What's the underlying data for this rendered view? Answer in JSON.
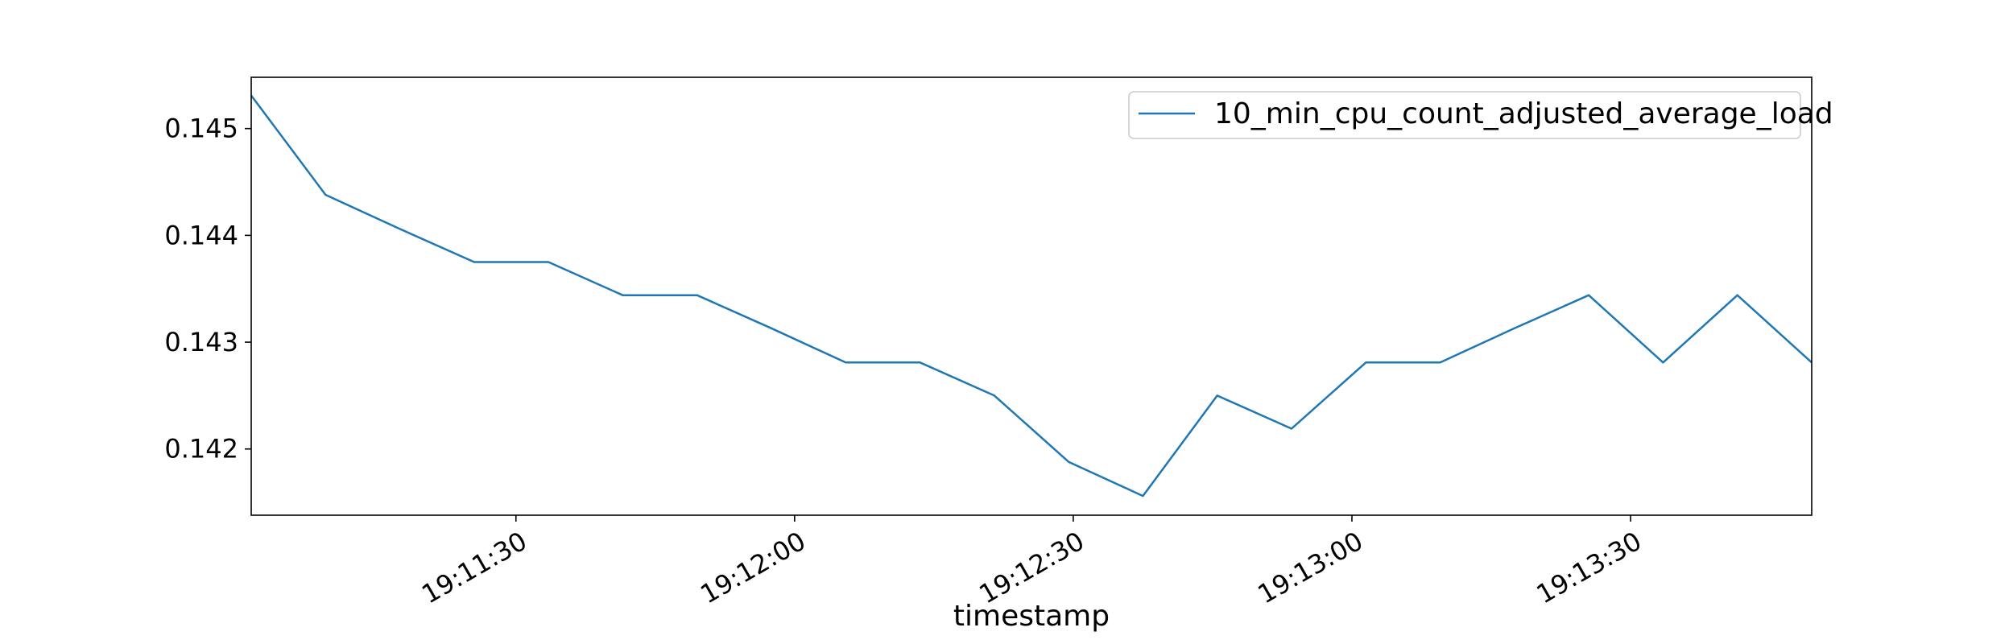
{
  "chart_data": {
    "type": "line",
    "title": "",
    "xlabel": "timestamp",
    "ylabel": "",
    "x_tick_labels": [
      "19:11:30",
      "19:12:00",
      "19:12:30",
      "19:13:00",
      "19:13:30"
    ],
    "x_tick_values": [
      "19:11:30",
      "19:12:00",
      "19:12:30",
      "19:13:00",
      "19:13:30"
    ],
    "y_tick_labels": [
      "0.142",
      "0.143",
      "0.144",
      "0.145"
    ],
    "y_tick_values": [
      0.142,
      0.143,
      0.144,
      0.145
    ],
    "xlim": [
      "19:11:01.5",
      "19:13:49.5"
    ],
    "ylim": [
      0.14138,
      0.14548
    ],
    "grid": false,
    "legend_position": "upper right",
    "x": [
      "19:11:01.5",
      "19:11:09.5",
      "19:11:17.5",
      "19:11:25.5",
      "19:11:33.5",
      "19:11:41.5",
      "19:11:49.5",
      "19:11:57.5",
      "19:12:05.5",
      "19:12:13.5",
      "19:12:21.5",
      "19:12:29.5",
      "19:12:37.5",
      "19:12:45.5",
      "19:12:53.5",
      "19:13:01.5",
      "19:13:09.5",
      "19:13:17.5",
      "19:13:25.5",
      "19:13:33.5",
      "19:13:41.5",
      "19:13:49.5"
    ],
    "series": [
      {
        "name": "10_min_cpu_count_adjusted_average_load",
        "color": "#1f77b4",
        "values": [
          0.14531,
          0.14438,
          0.14406,
          0.14375,
          0.14375,
          0.14344,
          0.14344,
          0.14313,
          0.14281,
          0.14281,
          0.1425,
          0.14188,
          0.14156,
          0.1425,
          0.14219,
          0.14281,
          0.14281,
          0.14313,
          0.14344,
          0.14281,
          0.14344,
          0.14281
        ]
      }
    ]
  }
}
